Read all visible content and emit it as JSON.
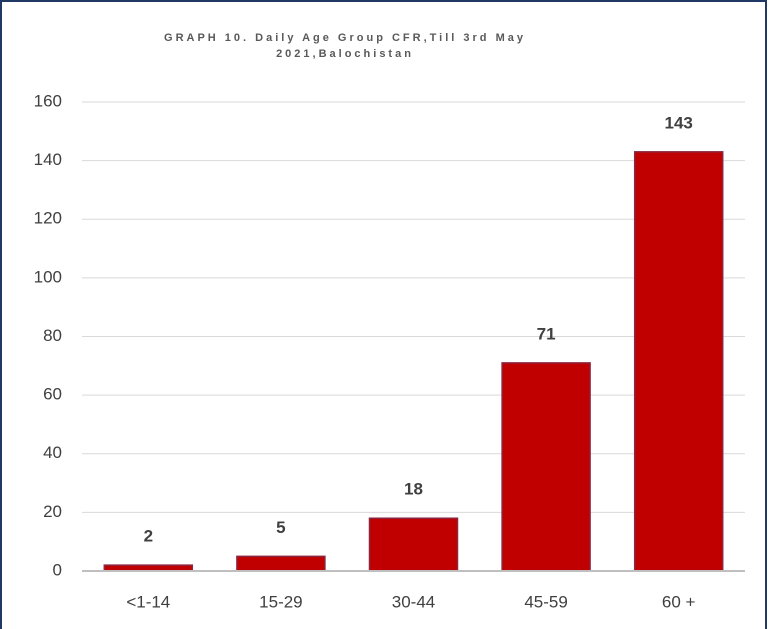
{
  "chart_data": {
    "type": "bar",
    "title": "GRAPH 10. Daily Age Group CFR,Till 3rd May 2021,Balochistan",
    "categories": [
      "<1-14",
      "15-29",
      "30-44",
      "45-59",
      "60 +"
    ],
    "values": [
      2,
      5,
      18,
      71,
      143
    ],
    "color": "#c00000",
    "ylim": [
      0,
      160
    ],
    "yticks": [
      0,
      20,
      40,
      60,
      80,
      100,
      120,
      140,
      160
    ],
    "grid": true
  }
}
